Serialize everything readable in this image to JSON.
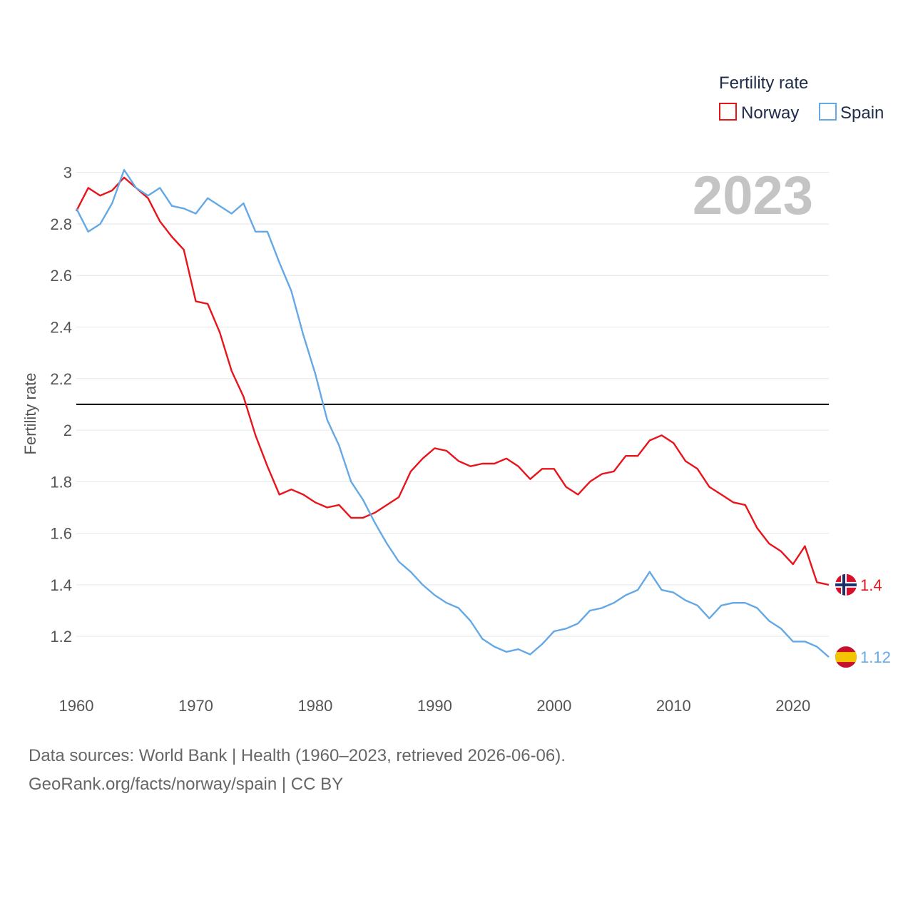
{
  "chart_data": {
    "type": "line",
    "title": "",
    "legend_title": "Fertility rate",
    "ylabel": "Fertility rate",
    "xlabel": "",
    "current_year": "2023",
    "xlim": [
      1960,
      2023
    ],
    "ylim": [
      1.04,
      3.06
    ],
    "x_ticks": [
      1960,
      1970,
      1980,
      1990,
      2000,
      2010,
      2020
    ],
    "y_ticks": [
      1.2,
      1.4,
      1.6,
      1.8,
      2,
      2.2,
      2.4,
      2.6,
      2.8,
      3
    ],
    "reference_line": 2.1,
    "colors": {
      "Norway": "#e8141b",
      "Spain": "#64a8e6"
    },
    "x": [
      1960,
      1961,
      1962,
      1963,
      1964,
      1965,
      1966,
      1967,
      1968,
      1969,
      1970,
      1971,
      1972,
      1973,
      1974,
      1975,
      1976,
      1977,
      1978,
      1979,
      1980,
      1981,
      1982,
      1983,
      1984,
      1985,
      1986,
      1987,
      1988,
      1989,
      1990,
      1991,
      1992,
      1993,
      1994,
      1995,
      1996,
      1997,
      1998,
      1999,
      2000,
      2001,
      2002,
      2003,
      2004,
      2005,
      2006,
      2007,
      2008,
      2009,
      2010,
      2011,
      2012,
      2013,
      2014,
      2015,
      2016,
      2017,
      2018,
      2019,
      2020,
      2021,
      2022,
      2023
    ],
    "series": [
      {
        "name": "Norway",
        "end_label": "1.4",
        "values": [
          2.85,
          2.94,
          2.91,
          2.93,
          2.98,
          2.94,
          2.9,
          2.81,
          2.75,
          2.7,
          2.5,
          2.49,
          2.38,
          2.23,
          2.13,
          1.98,
          1.86,
          1.75,
          1.77,
          1.75,
          1.72,
          1.7,
          1.71,
          1.66,
          1.66,
          1.68,
          1.71,
          1.74,
          1.84,
          1.89,
          1.93,
          1.92,
          1.88,
          1.86,
          1.87,
          1.87,
          1.89,
          1.86,
          1.81,
          1.85,
          1.85,
          1.78,
          1.75,
          1.8,
          1.83,
          1.84,
          1.9,
          1.9,
          1.96,
          1.98,
          1.95,
          1.88,
          1.85,
          1.78,
          1.75,
          1.72,
          1.71,
          1.62,
          1.56,
          1.53,
          1.48,
          1.55,
          1.41,
          1.4
        ]
      },
      {
        "name": "Spain",
        "end_label": "1.12",
        "values": [
          2.86,
          2.77,
          2.8,
          2.88,
          3.01,
          2.94,
          2.91,
          2.94,
          2.87,
          2.86,
          2.84,
          2.9,
          2.87,
          2.84,
          2.88,
          2.77,
          2.77,
          2.65,
          2.54,
          2.37,
          2.22,
          2.04,
          1.94,
          1.8,
          1.73,
          1.64,
          1.56,
          1.49,
          1.45,
          1.4,
          1.36,
          1.33,
          1.31,
          1.26,
          1.19,
          1.16,
          1.14,
          1.15,
          1.13,
          1.17,
          1.22,
          1.23,
          1.25,
          1.3,
          1.31,
          1.33,
          1.36,
          1.38,
          1.45,
          1.38,
          1.37,
          1.34,
          1.32,
          1.27,
          1.32,
          1.33,
          1.33,
          1.31,
          1.26,
          1.23,
          1.18,
          1.18,
          1.16,
          1.12
        ]
      }
    ]
  },
  "footer": {
    "line1": "Data sources: World Bank | Health (1960–2023, retrieved 2026-06-06).",
    "line2": "GeoRank.org/facts/norway/spain | CC BY"
  }
}
